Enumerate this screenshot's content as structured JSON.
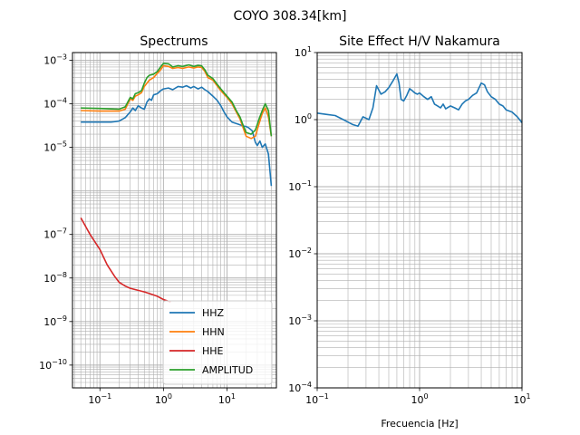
{
  "figure": {
    "suptitle": "COYO 308.34[km]"
  },
  "chart_data": [
    {
      "type": "line",
      "title": "Spectrums",
      "xlabel": "",
      "ylabel": "",
      "xscale": "log",
      "yscale": "log",
      "xlim": [
        0.037,
        60
      ],
      "ylim": [
        3e-11,
        0.0015
      ],
      "grid": "both major and minor",
      "legend": "lower-right",
      "x_ticks": [
        {
          "v": 0.1,
          "base": "10",
          "exp": "−1"
        },
        {
          "v": 1,
          "base": "10",
          "exp": "0"
        },
        {
          "v": 10,
          "base": "10",
          "exp": "1"
        }
      ],
      "y_ticks": [
        {
          "v": 1e-10,
          "base": "10",
          "exp": "−10"
        },
        {
          "v": 1e-09,
          "base": "10",
          "exp": "−9"
        },
        {
          "v": 1e-08,
          "base": "10",
          "exp": "−8"
        },
        {
          "v": 1e-07,
          "base": "10",
          "exp": "−7"
        },
        {
          "v": 1e-05,
          "base": "10",
          "exp": "−5"
        },
        {
          "v": 0.0001,
          "base": "10",
          "exp": "−4"
        },
        {
          "v": 0.001,
          "base": "10",
          "exp": "−3"
        }
      ],
      "series": [
        {
          "name": "HHZ",
          "color": "#1f77b4",
          "x": [
            0.05,
            0.1,
            0.15,
            0.2,
            0.25,
            0.3,
            0.33,
            0.36,
            0.4,
            0.45,
            0.5,
            0.55,
            0.6,
            0.65,
            0.7,
            0.8,
            0.9,
            1.0,
            1.2,
            1.4,
            1.7,
            2.0,
            2.3,
            2.7,
            3.0,
            3.5,
            4.0,
            4.5,
            5.0,
            6.0,
            7.0,
            8.0,
            9.0,
            10,
            12,
            15,
            18,
            20,
            22,
            25,
            28,
            30,
            33,
            36,
            40,
            45,
            50
          ],
          "y": [
            3.8e-05,
            3.8e-05,
            3.8e-05,
            4e-05,
            4.8e-05,
            6.5e-05,
            8e-05,
            7e-05,
            9e-05,
            8e-05,
            7.5e-05,
            0.00011,
            0.00013,
            0.00012,
            0.00016,
            0.00017,
            0.0002,
            0.00022,
            0.00023,
            0.00021,
            0.00025,
            0.00024,
            0.00026,
            0.00023,
            0.00025,
            0.00022,
            0.00024,
            0.00021,
            0.00019,
            0.00015,
            0.00012,
            9e-05,
            6.5e-05,
            5e-05,
            3.8e-05,
            3.4e-05,
            3.1e-05,
            3e-05,
            2.8e-05,
            2.4e-05,
            1.3e-05,
            1.1e-05,
            1.4e-05,
            1e-05,
            1.2e-05,
            7e-06,
            1.3e-06
          ]
        },
        {
          "name": "HHN",
          "color": "#ff7f0e",
          "x": [
            0.05,
            0.1,
            0.15,
            0.2,
            0.25,
            0.3,
            0.33,
            0.36,
            0.4,
            0.45,
            0.5,
            0.6,
            0.7,
            0.8,
            0.9,
            1.0,
            1.2,
            1.4,
            1.7,
            2.0,
            2.5,
            3.0,
            3.5,
            4.0,
            4.5,
            5.0,
            6.0,
            7.0,
            8.0,
            10,
            12,
            14,
            16,
            18,
            20,
            24,
            28,
            32,
            36,
            40,
            45,
            50
          ],
          "y": [
            7e-05,
            6.8e-05,
            6.8e-05,
            6.8e-05,
            7.5e-05,
            0.00013,
            0.00012,
            0.00015,
            0.00016,
            0.00018,
            0.00025,
            0.00035,
            0.0004,
            0.0005,
            0.0006,
            0.00075,
            0.00072,
            0.00065,
            0.00068,
            0.00065,
            0.0007,
            0.00066,
            0.0007,
            0.00068,
            0.00055,
            0.0004,
            0.00035,
            0.00026,
            0.0002,
            0.00014,
            0.0001,
            6.5e-05,
            4.5e-05,
            2.8e-05,
            1.8e-05,
            1.6e-05,
            1.8e-05,
            3.5e-05,
            6e-05,
            8e-05,
            5e-05,
            1.8e-05
          ]
        },
        {
          "name": "HHE",
          "color": "#d62728",
          "x": [
            0.05,
            0.07,
            0.1,
            0.13,
            0.17,
            0.2,
            0.25,
            0.3,
            0.4,
            0.5,
            0.6,
            0.8,
            1.0,
            1.3
          ],
          "y": [
            2.4e-07,
            1e-07,
            4.5e-08,
            2e-08,
            1.1e-08,
            8e-09,
            6.5e-09,
            5.8e-09,
            5.2e-09,
            4.8e-09,
            4.4e-09,
            3.8e-09,
            3.2e-09,
            2.8e-09
          ]
        },
        {
          "name": "AMPLITUD",
          "color": "#2ca02c",
          "x": [
            0.05,
            0.1,
            0.15,
            0.2,
            0.25,
            0.3,
            0.33,
            0.36,
            0.4,
            0.45,
            0.5,
            0.55,
            0.6,
            0.7,
            0.8,
            0.9,
            1.0,
            1.2,
            1.4,
            1.7,
            2.0,
            2.5,
            3.0,
            3.5,
            4.0,
            4.5,
            5.0,
            6.0,
            7.0,
            8.0,
            10,
            12,
            14,
            16,
            18,
            20,
            24,
            28,
            32,
            36,
            40,
            45,
            50
          ],
          "y": [
            8e-05,
            7.8e-05,
            7.6e-05,
            7.5e-05,
            8.5e-05,
            0.00014,
            0.00013,
            0.00017,
            0.00018,
            0.0002,
            0.0003,
            0.0004,
            0.00045,
            0.00048,
            0.00055,
            0.0007,
            0.00085,
            0.00083,
            0.0007,
            0.00075,
            0.00072,
            0.00078,
            0.00072,
            0.00076,
            0.00074,
            0.0006,
            0.00045,
            0.00038,
            0.00028,
            0.00022,
            0.00015,
            0.00011,
            7e-05,
            5e-05,
            3.2e-05,
            2.2e-05,
            2e-05,
            2.5e-05,
            4.5e-05,
            7e-05,
            0.0001,
            7e-05,
            1.8e-05
          ]
        }
      ]
    },
    {
      "type": "line",
      "title": "Site Effect H/V Nakamura",
      "xlabel": "Frecuencia [Hz]",
      "ylabel": "",
      "xscale": "log",
      "yscale": "log",
      "xlim": [
        0.1,
        10
      ],
      "ylim": [
        0.0001,
        10
      ],
      "grid": "both major and minor",
      "x_ticks": [
        {
          "v": 0.1,
          "base": "10",
          "exp": "−1"
        },
        {
          "v": 1,
          "base": "10",
          "exp": "0"
        },
        {
          "v": 10,
          "base": "10",
          "exp": "1"
        }
      ],
      "y_ticks": [
        {
          "v": 0.0001,
          "base": "10",
          "exp": "−4"
        },
        {
          "v": 0.001,
          "base": "10",
          "exp": "−3"
        },
        {
          "v": 0.01,
          "base": "10",
          "exp": "−2"
        },
        {
          "v": 0.1,
          "base": "10",
          "exp": "−1"
        },
        {
          "v": 1,
          "base": "10",
          "exp": "0"
        },
        {
          "v": 10,
          "base": "10",
          "exp": "1"
        }
      ],
      "series": [
        {
          "name": "",
          "color": "#1f77b4",
          "x": [
            0.1,
            0.12,
            0.15,
            0.18,
            0.22,
            0.25,
            0.28,
            0.32,
            0.35,
            0.38,
            0.42,
            0.46,
            0.5,
            0.55,
            0.6,
            0.63,
            0.66,
            0.7,
            0.75,
            0.8,
            0.85,
            0.9,
            0.95,
            1.0,
            1.1,
            1.2,
            1.3,
            1.4,
            1.5,
            1.6,
            1.7,
            1.8,
            2.0,
            2.2,
            2.4,
            2.6,
            2.8,
            3.0,
            3.3,
            3.6,
            4.0,
            4.3,
            4.6,
            5.0,
            5.5,
            6.0,
            6.5,
            7.0,
            8.0,
            9.0,
            10.0
          ],
          "y": [
            1.25,
            1.2,
            1.15,
            1.0,
            0.85,
            0.8,
            1.1,
            1.0,
            1.5,
            3.2,
            2.4,
            2.6,
            3.0,
            3.8,
            4.8,
            3.5,
            2.0,
            1.9,
            2.3,
            2.9,
            2.7,
            2.5,
            2.4,
            2.5,
            2.2,
            2.0,
            2.2,
            1.7,
            1.6,
            1.5,
            1.7,
            1.45,
            1.6,
            1.5,
            1.4,
            1.7,
            1.9,
            2.0,
            2.3,
            2.5,
            3.5,
            3.3,
            2.6,
            2.2,
            2.0,
            1.7,
            1.6,
            1.4,
            1.3,
            1.1,
            0.9
          ]
        }
      ]
    }
  ]
}
